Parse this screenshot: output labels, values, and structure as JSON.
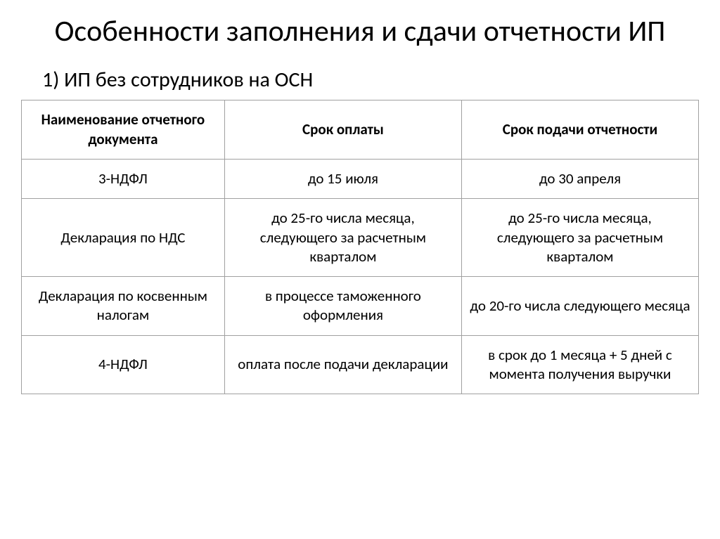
{
  "title": "Особенности заполнения и сдачи отчетности ИП",
  "subtitle": "1) ИП без сотрудников на ОСН",
  "table": {
    "headers": {
      "col1": "Наименование отчетного документа",
      "col2": "Срок оплаты",
      "col3": "Срок подачи отчетности"
    },
    "rows": [
      {
        "name": "3-НДФЛ",
        "payment": "до 15 июля",
        "deadline": "до 30 апреля"
      },
      {
        "name": "Декларация по НДС",
        "payment": "до 25-го числа месяца, следующего за расчетным кварталом",
        "deadline": "до 25-го числа месяца, следующего за расчетным кварталом"
      },
      {
        "name": "Декларация по косвенным налогам",
        "payment": "в процессе таможенного оформления",
        "deadline": "до 20-го числа следующего месяца"
      },
      {
        "name": "4-НДФЛ",
        "payment": "оплата после подачи декларации",
        "deadline": "в срок до 1 месяца + 5 дней с момента получения выручки"
      }
    ]
  },
  "style": {
    "background_color": "#ffffff",
    "text_color": "#000000",
    "border_color": "#a0a0a0",
    "title_fontsize": 42,
    "subtitle_fontsize": 30,
    "cell_fontsize": 21,
    "header_fontweight": 700,
    "cell_fontweight": 400
  }
}
